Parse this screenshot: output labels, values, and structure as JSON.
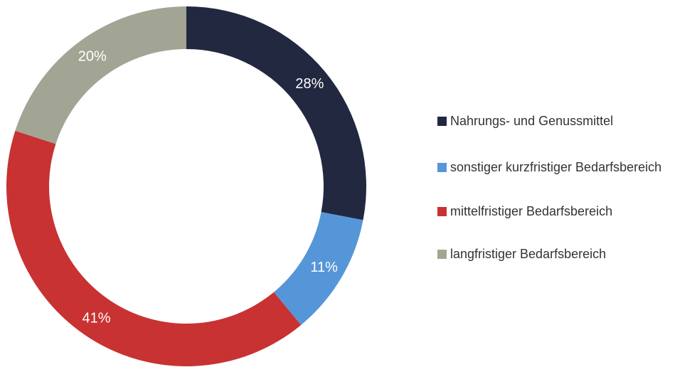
{
  "chart_data": {
    "type": "donut",
    "categories": [
      "Nahrungs- und Genussmittel",
      "sonstiger kurzfristiger Bedarfsbereich",
      "mittelfristiger Bedarfsbereich",
      "langfristiger Bedarfsbereich"
    ],
    "values": [
      28,
      11,
      41,
      20
    ],
    "value_labels": [
      "28%",
      "11%",
      "41%",
      "20%"
    ],
    "colors": [
      "#222840",
      "#5596d8",
      "#c83232",
      "#a3a594"
    ]
  }
}
